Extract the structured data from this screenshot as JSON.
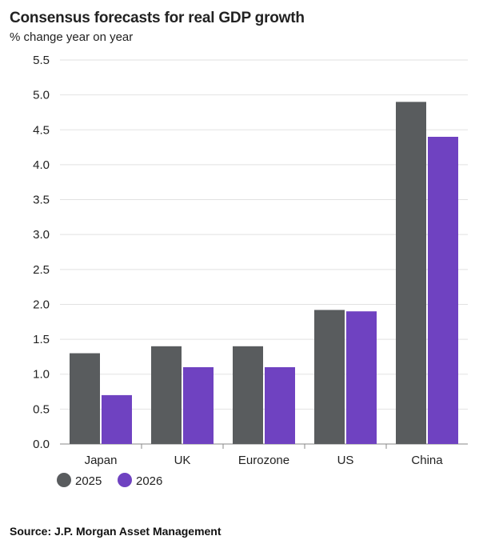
{
  "chart_data": {
    "type": "bar",
    "title": "Consensus forecasts for real GDP growth",
    "subtitle": "% change year on year",
    "categories": [
      "Japan",
      "UK",
      "Eurozone",
      "US",
      "China"
    ],
    "series": [
      {
        "name": "2025",
        "values": [
          1.3,
          1.4,
          1.4,
          1.92,
          4.9
        ],
        "color": "#595c5e"
      },
      {
        "name": "2026",
        "values": [
          0.7,
          1.1,
          1.1,
          1.9,
          4.4
        ],
        "color": "#6f42c1"
      }
    ],
    "ylim": [
      0,
      5.5
    ],
    "yticks": [
      "0.0",
      "0.5",
      "1.0",
      "1.5",
      "2.0",
      "2.5",
      "3.0",
      "3.5",
      "4.0",
      "4.5",
      "5.0",
      "5.5"
    ],
    "grid": true,
    "legend": "bottom-left",
    "xlabel": "",
    "ylabel": ""
  },
  "source": "Source: J.P. Morgan Asset Management"
}
